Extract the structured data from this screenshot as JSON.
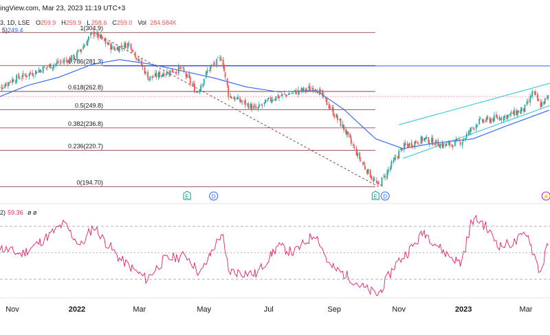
{
  "header": {
    "source_text": "ingView.com, Mar 23, 2023 11:19 UTC+3",
    "symbol_text": "3, 1D, LSE",
    "ohlc": [
      {
        "key": "O",
        "value": "259.9"
      },
      {
        "key": "H",
        "value": "259.9"
      },
      {
        "key": "L",
        "value": "258.6"
      },
      {
        "key": "C",
        "value": "259.0"
      },
      {
        "key": "Vol",
        "value": "284.584K"
      }
    ],
    "ma_label": "5)",
    "ma_value": "249.4",
    "rsi_label": "2)",
    "rsi_value": "59.36",
    "rsi_extra": "ø  ø"
  },
  "colors": {
    "up": "#26a69a",
    "down": "#ef5350",
    "ma": "#2962ff",
    "fib": "#7a2a2a",
    "channel": "#26c6da",
    "rsi": "#e91e63",
    "hline": "#2962ff",
    "rsi_text": "#e91e63",
    "ma_text": "#2962ff"
  },
  "chart_data": [
    {
      "type": "candlestick",
      "title": "",
      "price_range": [
        192,
        312
      ],
      "time_range": [
        "2021-10-15",
        "2023-03-23"
      ],
      "fibonacci": [
        {
          "label": "1(304.9)",
          "ratio": 1,
          "price": 304.9
        },
        {
          "label": "0.786(281.3)",
          "ratio": 0.786,
          "price": 281.3
        },
        {
          "label": "0.618(262.8)",
          "ratio": 0.618,
          "price": 262.8
        },
        {
          "label": "0.5(249.8)",
          "ratio": 0.5,
          "price": 249.8
        },
        {
          "label": "0.382(236.8)",
          "ratio": 0.382,
          "price": 236.8
        },
        {
          "label": "0.236(220.7)",
          "ratio": 0.236,
          "price": 220.7
        },
        {
          "label": "0(194.70)",
          "ratio": 0,
          "price": 194.7
        }
      ],
      "horizontal_line": {
        "price": 281.0
      },
      "trend_line": {
        "from": {
          "date": "2022-01-17",
          "price": 304.9
        },
        "to": {
          "date": "2022-10-13",
          "price": 194.7
        }
      },
      "channel": {
        "upper": [
          {
            "date": "2022-11-01",
            "price": 239.0
          },
          {
            "date": "2023-03-23",
            "price": 268.5
          }
        ],
        "lower": [
          {
            "date": "2022-11-05",
            "price": 215.0
          },
          {
            "date": "2023-03-23",
            "price": 252.5
          }
        ]
      },
      "event_markers": [
        {
          "label": "E",
          "date": "2022-04-15"
        },
        {
          "label": "D",
          "date": "2022-05-10"
        },
        {
          "label": "E",
          "date": "2022-10-10"
        },
        {
          "label": "D",
          "date": "2022-10-19"
        },
        {
          "label": "⚡",
          "date": "2023-03-20"
        }
      ],
      "ma_series": [
        {
          "date": "2021-10-15",
          "value": 257.5
        },
        {
          "date": "2021-11-15",
          "value": 267.0
        },
        {
          "date": "2021-12-15",
          "value": 273.0
        },
        {
          "date": "2022-01-15",
          "value": 282.0
        },
        {
          "date": "2022-02-10",
          "value": 285.5
        },
        {
          "date": "2022-03-10",
          "value": 282.5
        },
        {
          "date": "2022-04-10",
          "value": 277.5
        },
        {
          "date": "2022-05-10",
          "value": 272.5
        },
        {
          "date": "2022-06-10",
          "value": 266.0
        },
        {
          "date": "2022-07-10",
          "value": 262.5
        },
        {
          "date": "2022-08-15",
          "value": 263.5
        },
        {
          "date": "2022-09-10",
          "value": 250.0
        },
        {
          "date": "2022-10-10",
          "value": 229.0
        },
        {
          "date": "2022-11-05",
          "value": 222.0
        },
        {
          "date": "2022-12-05",
          "value": 226.0
        },
        {
          "date": "2023-01-10",
          "value": 229.0
        },
        {
          "date": "2023-02-10",
          "value": 238.0
        },
        {
          "date": "2023-03-23",
          "value": 249.4
        }
      ],
      "close_series": [
        {
          "date": "2021-10-15",
          "value": 263
        },
        {
          "date": "2021-11-01",
          "value": 271
        },
        {
          "date": "2021-11-20",
          "value": 276
        },
        {
          "date": "2021-12-10",
          "value": 282
        },
        {
          "date": "2021-12-30",
          "value": 287
        },
        {
          "date": "2022-01-17",
          "value": 304.9
        },
        {
          "date": "2022-02-05",
          "value": 293
        },
        {
          "date": "2022-02-20",
          "value": 297
        },
        {
          "date": "2022-03-10",
          "value": 272
        },
        {
          "date": "2022-03-25",
          "value": 276
        },
        {
          "date": "2022-04-10",
          "value": 279
        },
        {
          "date": "2022-04-25",
          "value": 262
        },
        {
          "date": "2022-05-05",
          "value": 278
        },
        {
          "date": "2022-05-18",
          "value": 287
        },
        {
          "date": "2022-05-25",
          "value": 260
        },
        {
          "date": "2022-06-20",
          "value": 250
        },
        {
          "date": "2022-07-05",
          "value": 258
        },
        {
          "date": "2022-07-25",
          "value": 262
        },
        {
          "date": "2022-08-15",
          "value": 266
        },
        {
          "date": "2022-08-25",
          "value": 255
        },
        {
          "date": "2022-09-10",
          "value": 237
        },
        {
          "date": "2022-09-25",
          "value": 215
        },
        {
          "date": "2022-10-13",
          "value": 194.7
        },
        {
          "date": "2022-10-25",
          "value": 210
        },
        {
          "date": "2022-11-05",
          "value": 223
        },
        {
          "date": "2022-11-25",
          "value": 229
        },
        {
          "date": "2022-12-15",
          "value": 224
        },
        {
          "date": "2022-12-30",
          "value": 227
        },
        {
          "date": "2023-01-15",
          "value": 241
        },
        {
          "date": "2023-02-10",
          "value": 245
        },
        {
          "date": "2023-02-28",
          "value": 250
        },
        {
          "date": "2023-03-08",
          "value": 262
        },
        {
          "date": "2023-03-15",
          "value": 253
        },
        {
          "date": "2023-03-23",
          "value": 259.0
        }
      ]
    },
    {
      "type": "line",
      "title": "",
      "range": [
        15,
        80
      ],
      "levels": [
        70,
        50,
        30
      ],
      "series": [
        {
          "values": [
            {
              "date": "2021-10-15",
              "value": 55
            },
            {
              "date": "2021-11-10",
              "value": 49
            },
            {
              "date": "2021-12-01",
              "value": 60
            },
            {
              "date": "2021-12-20",
              "value": 72
            },
            {
              "date": "2022-01-05",
              "value": 55
            },
            {
              "date": "2022-01-17",
              "value": 70
            },
            {
              "date": "2022-02-10",
              "value": 46
            },
            {
              "date": "2022-03-08",
              "value": 30
            },
            {
              "date": "2022-03-25",
              "value": 45
            },
            {
              "date": "2022-04-15",
              "value": 48
            },
            {
              "date": "2022-04-28",
              "value": 34
            },
            {
              "date": "2022-05-18",
              "value": 65
            },
            {
              "date": "2022-05-25",
              "value": 36
            },
            {
              "date": "2022-06-20",
              "value": 34
            },
            {
              "date": "2022-07-10",
              "value": 55
            },
            {
              "date": "2022-07-25",
              "value": 50
            },
            {
              "date": "2022-08-15",
              "value": 65
            },
            {
              "date": "2022-08-28",
              "value": 40
            },
            {
              "date": "2022-09-15",
              "value": 32
            },
            {
              "date": "2022-09-28",
              "value": 24
            },
            {
              "date": "2022-10-13",
              "value": 18
            },
            {
              "date": "2022-10-28",
              "value": 40
            },
            {
              "date": "2022-11-15",
              "value": 55
            },
            {
              "date": "2022-11-25",
              "value": 66
            },
            {
              "date": "2022-12-15",
              "value": 50
            },
            {
              "date": "2022-12-30",
              "value": 42
            },
            {
              "date": "2023-01-10",
              "value": 75
            },
            {
              "date": "2023-01-18",
              "value": 74
            },
            {
              "date": "2023-02-05",
              "value": 55
            },
            {
              "date": "2023-02-20",
              "value": 58
            },
            {
              "date": "2023-03-02",
              "value": 66
            },
            {
              "date": "2023-03-15",
              "value": 35
            },
            {
              "date": "2023-03-23",
              "value": 59.36
            }
          ]
        }
      ]
    }
  ],
  "time_axis": [
    {
      "label": "Nov",
      "date": "2021-11-01",
      "bold": false
    },
    {
      "label": "2022",
      "date": "2022-01-01",
      "bold": true
    },
    {
      "label": "Mar",
      "date": "2022-03-01",
      "bold": false
    },
    {
      "label": "May",
      "date": "2022-05-01",
      "bold": false
    },
    {
      "label": "Jul",
      "date": "2022-07-01",
      "bold": false
    },
    {
      "label": "Sep",
      "date": "2022-09-01",
      "bold": false
    },
    {
      "label": "Nov",
      "date": "2022-11-01",
      "bold": false
    },
    {
      "label": "2023",
      "date": "2023-01-01",
      "bold": true
    },
    {
      "label": "Mar",
      "date": "2023-03-01",
      "bold": false
    }
  ]
}
